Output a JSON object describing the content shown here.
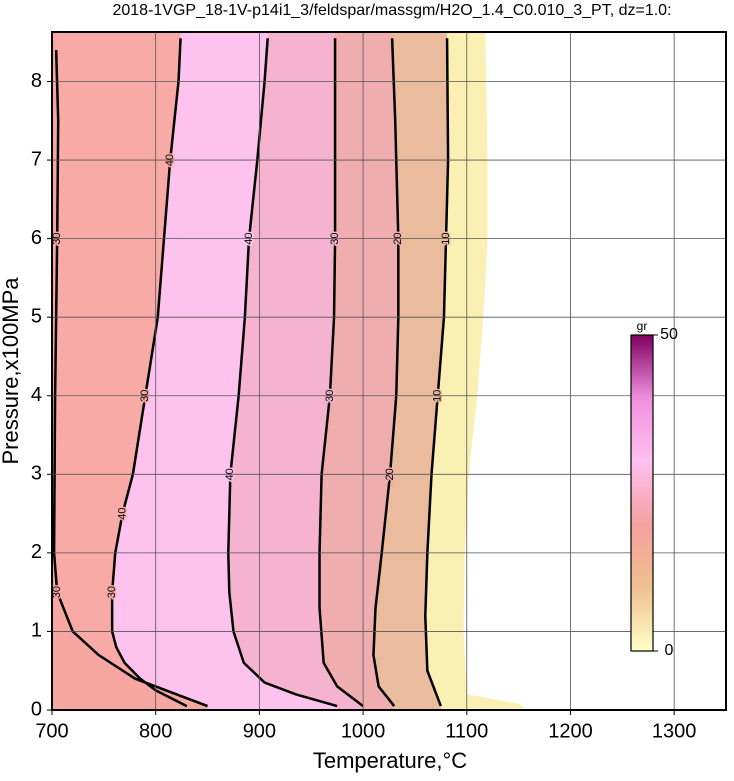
{
  "chart_data": {
    "type": "contour",
    "title": "2018-1VGP_18-1V-p14i1_3/feldspar/massgm/H2O_1.4_C0.010_3_PT, dz=1.0:",
    "x_label": "Temperature,°C",
    "y_label": "Pressure,x100MPa",
    "xlim": [
      700,
      1350
    ],
    "ylim": [
      0,
      8.63
    ],
    "xticks": [
      700,
      800,
      900,
      1000,
      1100,
      1200,
      1300
    ],
    "yticks": [
      0,
      1,
      2,
      3,
      4,
      5,
      6,
      7,
      8
    ],
    "grid": true,
    "contours": [
      {
        "labels": [
          30,
          30
        ],
        "fill": "#f6a7a2",
        "x": [
          704,
          706,
          705,
          703,
          702,
          705,
          720,
          745,
          780,
          820,
          850
        ],
        "y": [
          8.4,
          7.5,
          6,
          4,
          2,
          1.5,
          1,
          0.7,
          0.4,
          0.2,
          0.05
        ]
      },
      {
        "labels": [
          40,
          30,
          40,
          30
        ],
        "fill": "#f8aba6",
        "x": [
          824,
          822,
          814,
          802,
          790,
          778,
          768,
          761,
          758,
          758,
          762,
          770,
          785,
          800,
          815,
          830
        ],
        "y": [
          8.55,
          8,
          7,
          5,
          4,
          3,
          2.5,
          2,
          1.5,
          1,
          0.8,
          0.6,
          0.4,
          0.25,
          0.15,
          0.05
        ]
      },
      {
        "labels": [
          40,
          40
        ],
        "fill": "#fdc3ee",
        "x": [
          908,
          905,
          898,
          890,
          886,
          880,
          872,
          870,
          871,
          875,
          885,
          905,
          935,
          975
        ],
        "y": [
          8.55,
          8,
          7,
          6,
          5,
          4,
          3,
          2,
          1.5,
          1,
          0.6,
          0.35,
          0.2,
          0.05
        ]
      },
      {
        "labels": [
          30,
          30
        ],
        "fill": "#f6b3cf",
        "x": [
          973,
          973,
          973,
          973,
          972,
          968,
          960,
          958,
          958,
          962,
          975,
          1000
        ],
        "y": [
          8.55,
          8,
          7,
          6,
          5,
          4,
          3,
          2,
          1.3,
          0.6,
          0.3,
          0.05
        ]
      },
      {
        "labels": [
          20,
          20
        ],
        "fill": "#efadad",
        "x": [
          1028,
          1031,
          1034,
          1034,
          1032,
          1026,
          1018,
          1012,
          1010,
          1015,
          1030
        ],
        "y": [
          8.55,
          7.5,
          6,
          5,
          4,
          3,
          2,
          1.3,
          0.7,
          0.3,
          0.05
        ]
      },
      {
        "labels": [
          10,
          10
        ],
        "fill": "#eabb9c",
        "x": [
          1081,
          1082,
          1080,
          1078,
          1072,
          1066,
          1062,
          1060,
          1062,
          1075
        ],
        "y": [
          8.55,
          7,
          6,
          5,
          4,
          3,
          2,
          1.2,
          0.5,
          0.05
        ]
      },
      {
        "labels": [],
        "fill": "#fbf0b4",
        "x": [
          1118,
          1120,
          1120,
          1116,
          1110,
          1102,
          1098,
          1097,
          1100,
          1150,
          1155
        ],
        "y": [
          8.55,
          7,
          6,
          5,
          4,
          3,
          2,
          1,
          0.2,
          0.08,
          0.04
        ]
      }
    ],
    "colorbar": {
      "label": "gr",
      "lim": [
        0,
        50
      ],
      "ticks": [
        0,
        50
      ],
      "colors": [
        "#ffffc8",
        "#f0c090",
        "#f4a0a0",
        "#ffc0f0",
        "#f090e0",
        "#800060"
      ]
    }
  }
}
